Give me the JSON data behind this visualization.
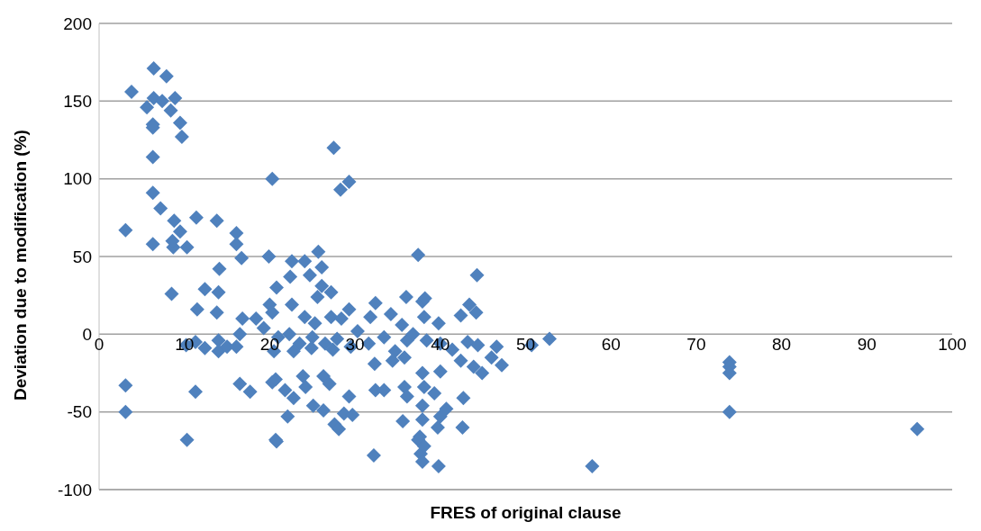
{
  "chart_data": {
    "type": "scatter",
    "xlabel": "FRES of original clause",
    "ylabel": "Deviation due to modification (%)",
    "xlim": [
      0,
      100
    ],
    "xticks": [
      0,
      10,
      20,
      30,
      40,
      50,
      60,
      70,
      80,
      90,
      100
    ],
    "ylim": [
      -100,
      200
    ],
    "yticks": [
      -100,
      -50,
      0,
      50,
      100,
      150,
      200
    ],
    "grid": "y",
    "marker": "diamond",
    "legend": false,
    "series": [
      {
        "color": "#4f81bd",
        "x": [
          6.4,
          3.8,
          7.9,
          6.4,
          5.6,
          7.4,
          8.4,
          8.9,
          9.5,
          6.3,
          6.3,
          9.7,
          6.3,
          20.3,
          6.3,
          7.2,
          3.1,
          8.8,
          11.4,
          13.8,
          16.1,
          6.3,
          8.7,
          10.3,
          9.5,
          8.6,
          16.1,
          16.7,
          19.9,
          14.1,
          8.5,
          12.4,
          14,
          11.5,
          13.8,
          10.2,
          11.3,
          12.4,
          14,
          14,
          15,
          16.1,
          16.5,
          3.1,
          3.1,
          11.3,
          10.3,
          16.5,
          17.7,
          20.3,
          20.7,
          16.8,
          18.4,
          27.5,
          29.3,
          28.3,
          22.6,
          24.1,
          25.7,
          26.1,
          22.4,
          24.7,
          20.8,
          26.1,
          27.2,
          25.6,
          20,
          22.6,
          20.3,
          24.1,
          25.3,
          27.2,
          29.3,
          28.4,
          32.4,
          34.2,
          31.8,
          35.5,
          36,
          37.9,
          19.3,
          21,
          22.3,
          23.5,
          25,
          26.5,
          27.9,
          30.3,
          31.6,
          33.4,
          34.7,
          36.1,
          20.5,
          22.8,
          24.9,
          27.4,
          29.5,
          32.3,
          34.4,
          35.8,
          20.7,
          21.8,
          22.8,
          23.9,
          24.2,
          26.3,
          27,
          29.3,
          32.4,
          33.4,
          35.8,
          36.1,
          22.1,
          25.1,
          26.3,
          27.6,
          28.1,
          28.7,
          29.7,
          35.6,
          20.8,
          32.2,
          37.6,
          37.7,
          37.4,
          44.3,
          38.2,
          43.4,
          44.2,
          42.4,
          38.1,
          39.8,
          36.8,
          38.4,
          40,
          41.4,
          43.2,
          44.4,
          46.6,
          46,
          47.2,
          50.7,
          52.8,
          42.4,
          43.9,
          44.9,
          40,
          37.9,
          38.1,
          39.3,
          42.7,
          37.9,
          40.7,
          40,
          37.9,
          42.6,
          39.7,
          37.4,
          38.1,
          37.9,
          39.8,
          57.8,
          73.9,
          73.9,
          73.9,
          73.9,
          95.9
        ],
        "values": [
          171,
          156,
          166,
          152,
          146,
          150,
          144,
          152,
          136,
          135,
          133,
          127,
          114,
          100,
          91,
          81,
          67,
          73,
          75,
          73,
          65,
          58,
          56,
          56,
          66,
          60,
          58,
          49,
          50,
          42,
          26,
          29,
          27,
          16,
          14,
          -7,
          -5,
          -9,
          -4,
          -11,
          -8,
          -8,
          0,
          -33,
          -50,
          -37,
          -68,
          -32,
          -37,
          -31,
          -68,
          10,
          10,
          120,
          98,
          93,
          47,
          47,
          53,
          43,
          37,
          38,
          30,
          31,
          27,
          24,
          19,
          19,
          14,
          11,
          7,
          11,
          16,
          10,
          20,
          13,
          11,
          6,
          24,
          21,
          4,
          -2,
          0,
          -6,
          -2,
          -6,
          -3,
          2,
          -6,
          -2,
          -11,
          -4,
          -11,
          -11,
          -9,
          -10,
          -8,
          -19,
          -17,
          -15,
          -29,
          -36,
          -41,
          -27,
          -34,
          -27,
          -32,
          -40,
          -36,
          -36,
          -34,
          -40,
          -53,
          -46,
          -49,
          -58,
          -61,
          -51,
          -52,
          -56,
          -69,
          -78,
          -66,
          -77,
          51,
          38,
          23,
          19,
          14,
          12,
          11,
          7,
          0,
          -4,
          -6,
          -10,
          -5,
          -7,
          -8,
          -15,
          -20,
          -7,
          -3,
          -17,
          -21,
          -25,
          -24,
          -25,
          -34,
          -38,
          -41,
          -46,
          -48,
          -53,
          -55,
          -60,
          -60,
          -68,
          -72,
          -82,
          -85,
          -85,
          -18,
          -21,
          -25,
          -50,
          -61
        ]
      }
    ]
  }
}
